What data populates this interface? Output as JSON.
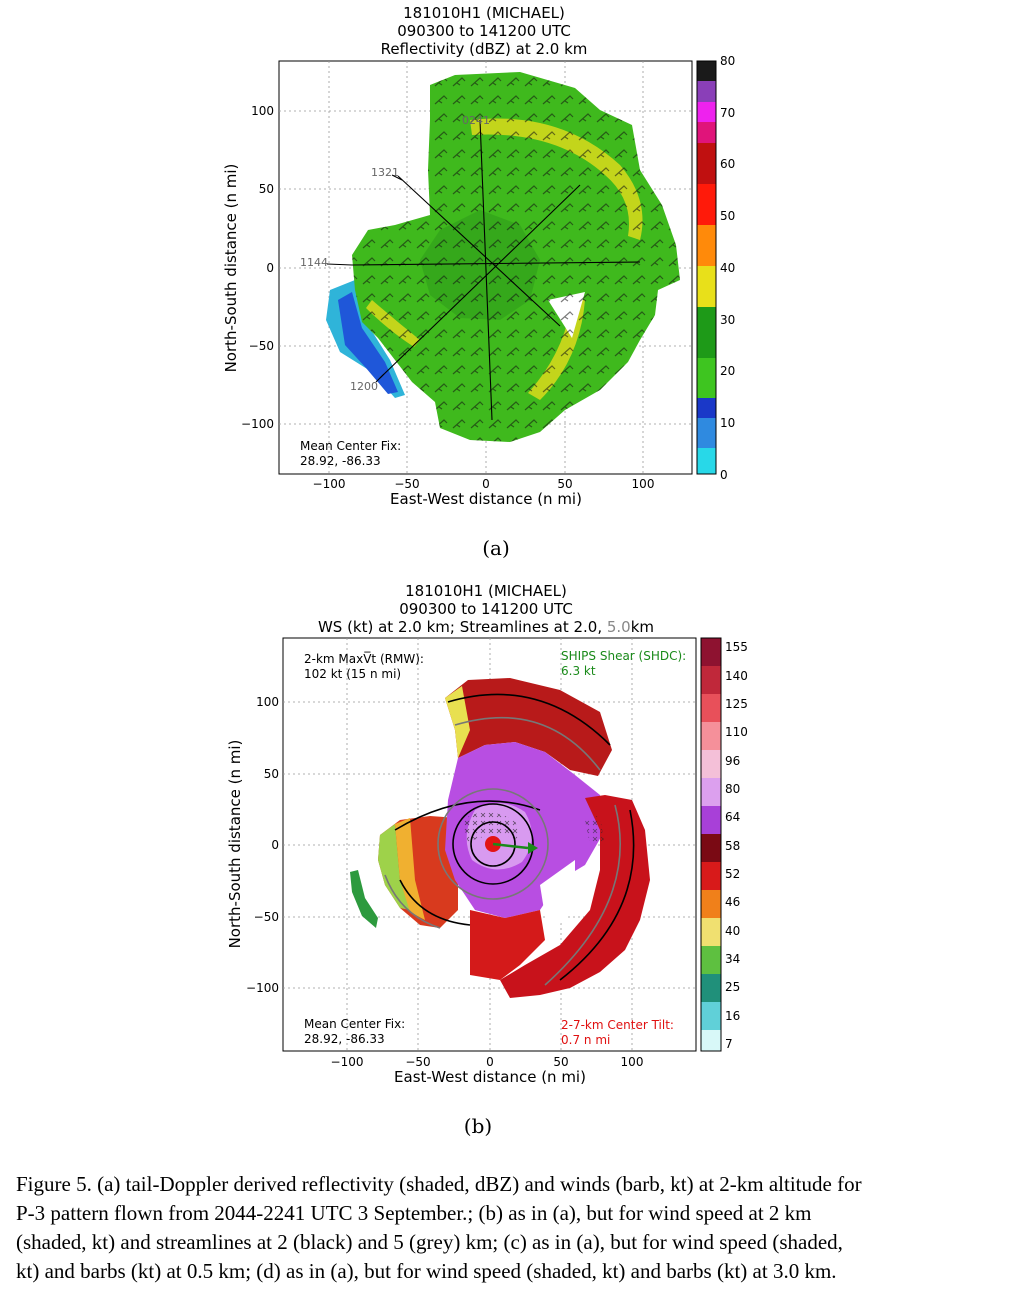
{
  "panel_a": {
    "title_lines": [
      "181010H1 (MICHAEL)",
      "090300 to 141200 UTC",
      "Reflectivity (dBZ) at 2.0 km"
    ],
    "xlabel": "East-West distance (n mi)",
    "ylabel": "North-South distance (n mi)",
    "xticks": [
      "−100",
      "−50",
      "0",
      "50",
      "100"
    ],
    "yticks": [
      "100",
      "50",
      "0",
      "−50",
      "−100"
    ],
    "colorbar_ticks": [
      "80",
      "70",
      "60",
      "50",
      "40",
      "30",
      "20",
      "10",
      "0"
    ],
    "leg_times": [
      "0241",
      "1321",
      "1144",
      "1200"
    ],
    "center_fix_label": "Mean Center Fix:",
    "center_fix_value": "28.92, -86.33",
    "sub_label": "(a)"
  },
  "panel_b": {
    "title_lines": [
      "181010H1 (MICHAEL)",
      "090300 to 141200 UTC"
    ],
    "title_line3_main": "WS (kt) at 2.0 km; Streamlines at 2.0, ",
    "title_line3_grey": "5.0",
    "title_line3_end": "km",
    "xlabel": "East-West distance (n mi)",
    "ylabel": "North-South distance (n mi)",
    "xticks": [
      "−100",
      "−50",
      "0",
      "50",
      "100"
    ],
    "yticks": [
      "100",
      "50",
      "0",
      "−50",
      "−100"
    ],
    "colorbar_ticks": [
      "155",
      "140",
      "125",
      "110",
      "96",
      "80",
      "64",
      "58",
      "52",
      "46",
      "40",
      "34",
      "25",
      "16",
      "7"
    ],
    "max_vt_label": "2-km MaxV̅t (RMW):",
    "max_vt_value": "102 kt (15 n mi)",
    "shear_label": "SHIPS Shear (SHDC):",
    "shear_value": "6.3 kt",
    "center_fix_label": "Mean Center Fix:",
    "center_fix_value": "28.92, -86.33",
    "tilt_label": "2-7-km Center Tilt:",
    "tilt_value": "0.7 n mi",
    "sub_label": "(b)"
  },
  "caption": "Figure 5.  (a) tail-Doppler derived reflectivity  (shaded, dBZ) and winds (barb, kt) at 2-km altitude for\nP-3 pattern flown from 2044-2241  UTC 3 September.; (b) as in (a), but for wind speed  at 2 km\n(shaded, kt) and streamlines at 2 (black) and 5 (grey) km; (c) as in (a), but for wind speed (shaded,\nkt) and barbs (kt) at 0.5 km; (d) as in (a), but for wind speed (shaded, kt) and barbs (kt) at 3.0 km.",
  "colors": {
    "refl_main": "#3fb91d",
    "refl_yellow": "#d2d81c",
    "refl_blue": "#1f57d9",
    "ws_purple": "#b84ee2",
    "ws_red": "#c8121b",
    "shear_text": "#1a8a1a",
    "tilt_text": "#e01010"
  }
}
